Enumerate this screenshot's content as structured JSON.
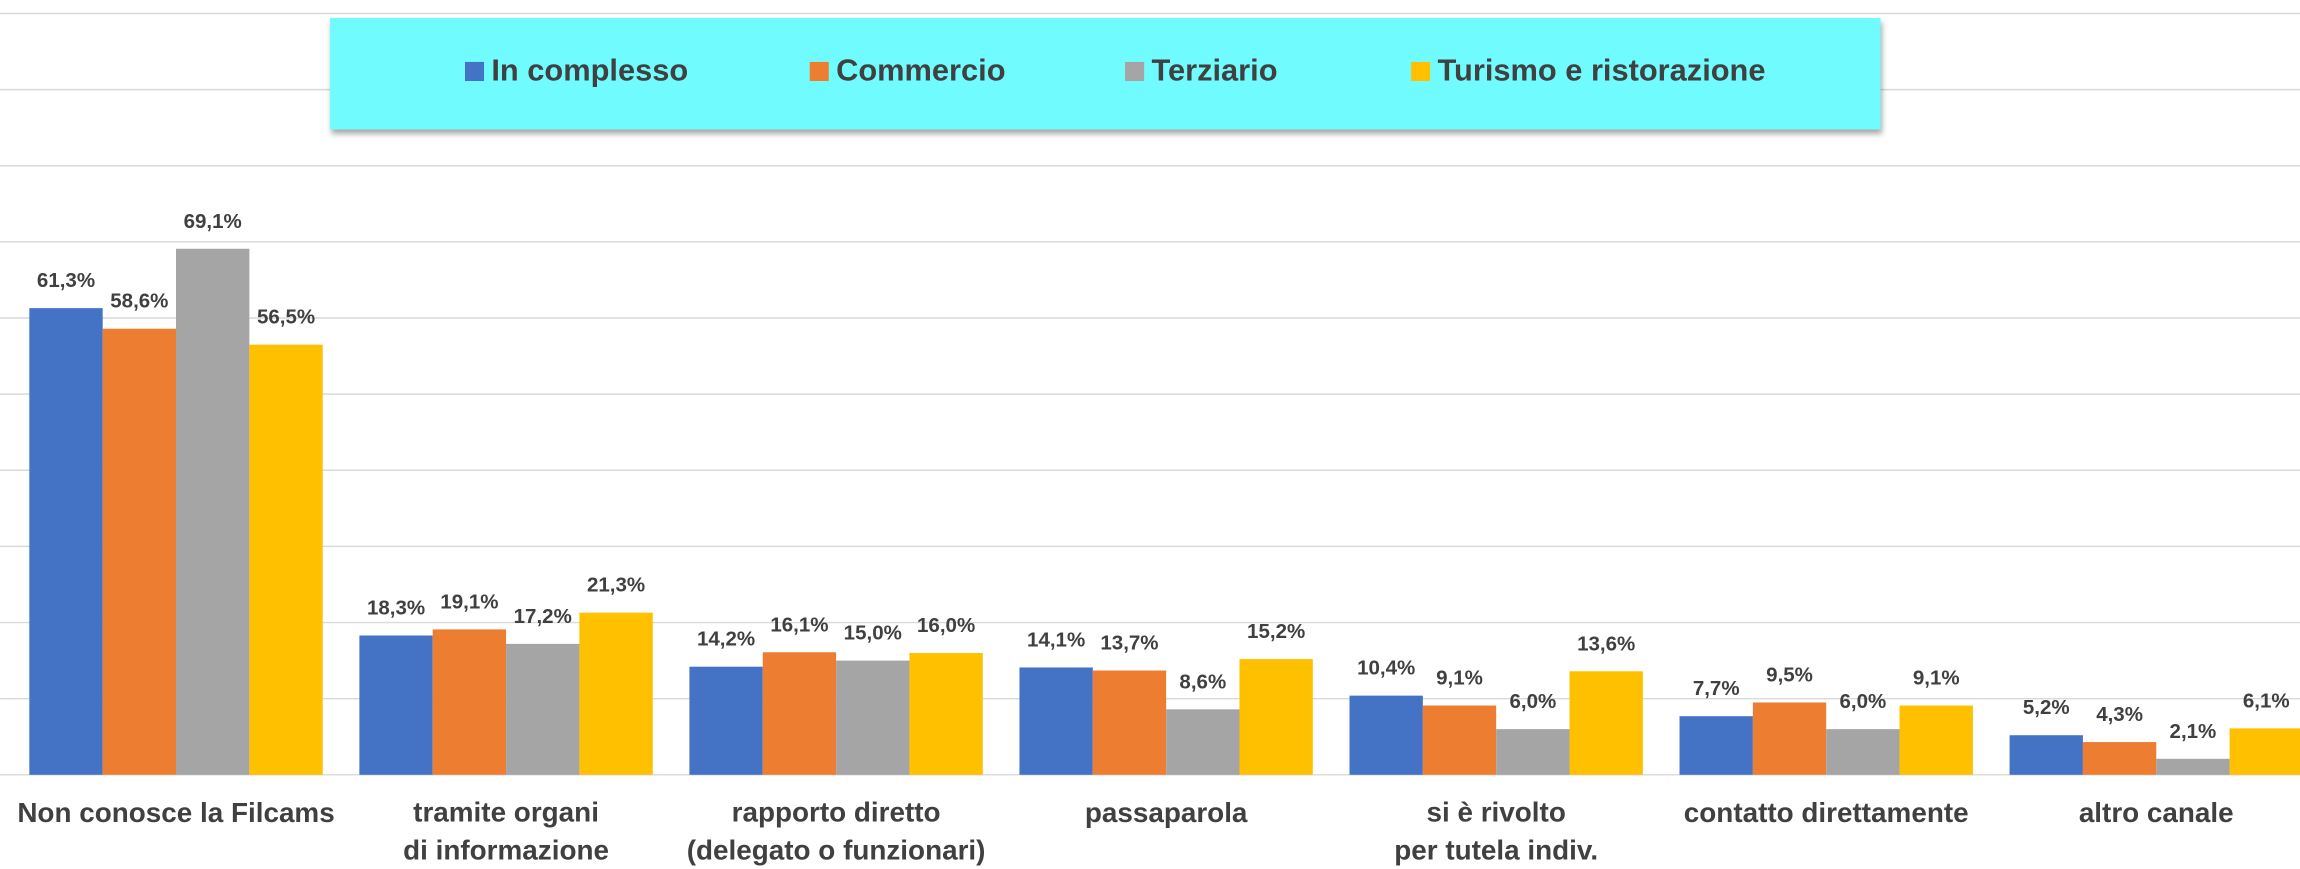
{
  "chart_data": {
    "type": "bar",
    "categories": [
      "Non conosce la Filcams",
      "tramite organi\ndi informazione",
      "rapporto diretto\n(delegato o funzionari)",
      "passaparola",
      "si è rivolto\nper tutela indiv.",
      "contatto direttamente",
      "altro canale"
    ],
    "series": [
      {
        "name": "In complesso",
        "color": "#4472c4",
        "values": [
          61.3,
          18.3,
          14.2,
          14.1,
          10.4,
          7.7,
          5.2
        ],
        "value_labels": [
          "61,3%",
          "18,3%",
          "14,2%",
          "14,1%",
          "10,4%",
          "7,7%",
          "5,2%"
        ]
      },
      {
        "name": "Commercio",
        "color": "#ed7d31",
        "values": [
          58.6,
          19.1,
          16.1,
          13.7,
          9.1,
          9.5,
          4.3
        ],
        "value_labels": [
          "58,6%",
          "19,1%",
          "16,1%",
          "13,7%",
          "9,1%",
          "9,5%",
          "4,3%"
        ]
      },
      {
        "name": "Terziario",
        "color": "#a5a5a5",
        "values": [
          69.1,
          17.2,
          15.0,
          8.6,
          6.0,
          6.0,
          2.1
        ],
        "value_labels": [
          "69,1%",
          "17,2%",
          "15,0%",
          "8,6%",
          "6,0%",
          "6,0%",
          "2,1%"
        ]
      },
      {
        "name": "Turismo e ristorazione",
        "color": "#ffc000",
        "values": [
          56.5,
          21.3,
          16.0,
          15.2,
          13.6,
          9.1,
          6.1
        ],
        "value_labels": [
          "56,5%",
          "21,3%",
          "16,0%",
          "15,2%",
          "13,6%",
          "9,1%",
          "6,1%"
        ]
      }
    ],
    "ylim": [
      0,
      100
    ],
    "yticks": [
      0,
      10,
      20,
      30,
      40,
      50,
      60,
      70,
      80,
      90,
      100
    ],
    "grid": true,
    "legend": "top"
  }
}
